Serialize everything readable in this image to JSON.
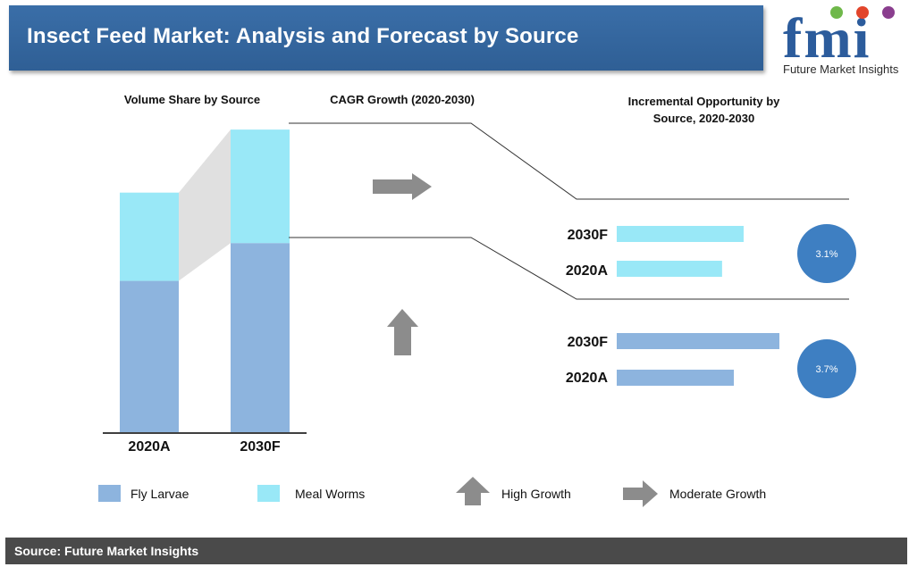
{
  "header": {
    "title": "Insect Feed Market: Analysis and Forecast by Source",
    "logo_text": "fmi",
    "logo_subtitle": "Future Market Insights"
  },
  "section_headers": {
    "volume_share": "Volume Share by Source",
    "cagr_growth": "CAGR Growth (2020-2030)",
    "incremental_opportunity": "Incremental Opportunity by Source, 2020-2030"
  },
  "colors": {
    "fly_larvae": "#8db4de",
    "meal_worms": "#99e8f7",
    "circle": "#3e7fc2",
    "arrow": "#8c8c8c",
    "title_bar": "#3366a0"
  },
  "chart_data": [
    {
      "type": "bar",
      "stacked": true,
      "title": "Volume Share by Source",
      "categories": [
        "2020A",
        "2030F"
      ],
      "series": [
        {
          "name": "Fly Larvae",
          "values": [
            48,
            60
          ]
        },
        {
          "name": "Meal Worms",
          "values": [
            28,
            36
          ]
        }
      ],
      "ylim": [
        0,
        100
      ],
      "grid": false
    },
    {
      "type": "bar",
      "orientation": "horizontal",
      "source": "Meal Worms",
      "categories": [
        "2030F",
        "2020A"
      ],
      "values": [
        100,
        83
      ],
      "cagr_label": "3.1%",
      "growth": "Moderate Growth"
    },
    {
      "type": "bar",
      "orientation": "horizontal",
      "source": "Fly Larvae",
      "categories": [
        "2030F",
        "2020A"
      ],
      "values": [
        100,
        72
      ],
      "cagr_label": "3.7%",
      "growth": "High Growth"
    }
  ],
  "legend": {
    "fly_larvae": "Fly Larvae",
    "meal_worms": "Meal Worms",
    "high_growth": "High Growth",
    "moderate_growth": "Moderate Growth"
  },
  "footer": {
    "source": "Source: Future Market Insights"
  }
}
